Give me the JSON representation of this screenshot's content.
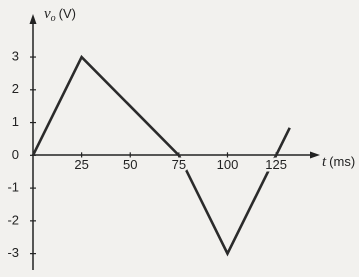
{
  "chart_data": {
    "type": "line",
    "ylabel": {
      "symbol": "v",
      "subscript": "o",
      "unit": "(V)"
    },
    "xlabel": {
      "symbol": "t",
      "unit": "(ms)"
    },
    "x": [
      0,
      25,
      75,
      100,
      132
    ],
    "series": [
      {
        "color": "#2b2b2b",
        "values": [
          0,
          3,
          0,
          -3,
          0.84
        ]
      }
    ],
    "xlim": [
      0,
      145
    ],
    "ylim": [
      -3.5,
      4.1
    ],
    "xticks": [
      25,
      50,
      75,
      100,
      125
    ],
    "yticks": [
      -3,
      -2,
      -1,
      0,
      1,
      2,
      3
    ]
  }
}
